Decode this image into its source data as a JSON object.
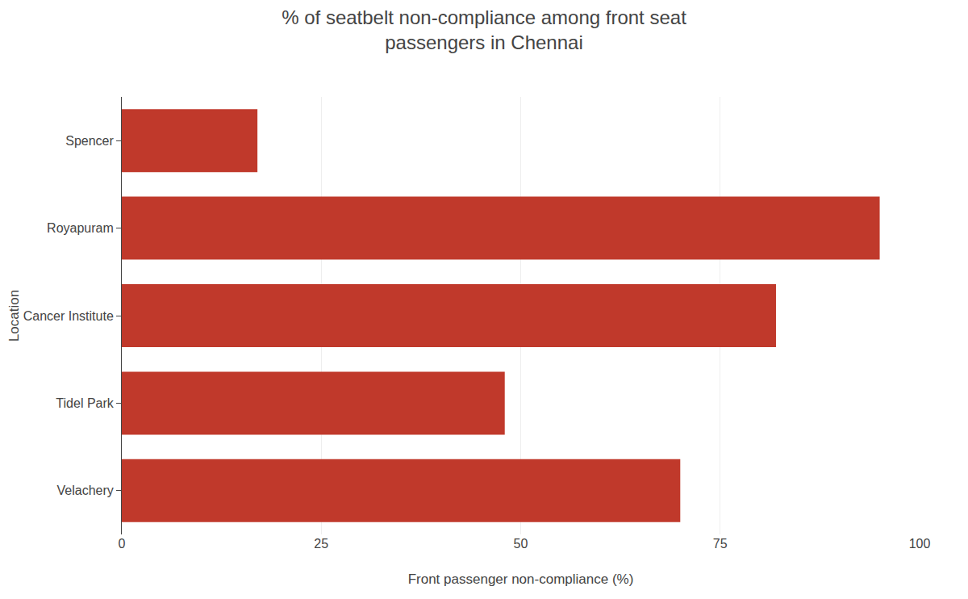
{
  "chart_data": {
    "type": "bar",
    "orientation": "horizontal",
    "title": "% of seatbelt non-compliance among front seat\npassengers in Chennai",
    "xlabel": "Front passenger non-compliance (%)",
    "ylabel": "Location",
    "categories": [
      "Velachery",
      "Tidel Park",
      "Cancer Institute",
      "Royapuram",
      "Spencer"
    ],
    "values": [
      70,
      48,
      82,
      95,
      17
    ],
    "color": "#c0392b",
    "xlim": [
      0,
      100
    ],
    "xticks": [
      0,
      25,
      50,
      75,
      100
    ],
    "grid": true
  }
}
